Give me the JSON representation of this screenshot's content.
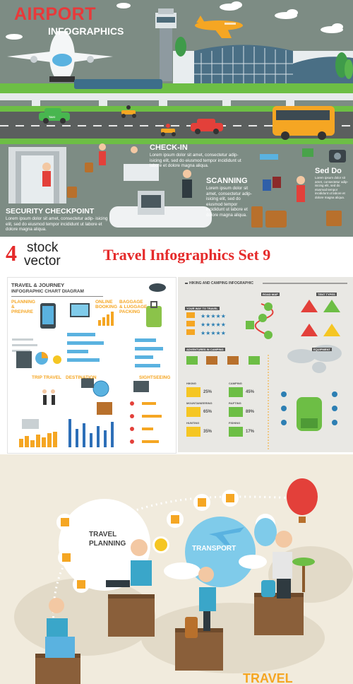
{
  "airport": {
    "title": "AIRPORT",
    "subtitle": "INFOGRAPHICS",
    "checkin_label": "CHECK-IN",
    "scanning_label": "SCANNING",
    "security_label": "SECURITY CHECKPOINT",
    "sed_do_label": "Sed Do",
    "taxi_text": "TAXI",
    "lorem_checkin": "Lorem ipsum dolor sit amet, consectetur adip- isicing elit, sed do eiusmod tempor incididunt ut labore et dolore magna aliqua.",
    "lorem_scanning": "Lorem ipsum dolor sit amet, consectetur adip- isicing elit, sed do eiusmod tempor incididunt ut labore et dolore magna aliqua.",
    "lorem_security": "Lorem ipsum dolor sit amet, consectetur adip- isicing elit, sed do eiusmod tempor incididunt ut labore et dolore magna aliqua.",
    "lorem_seddo": "Lorem ipsum dolor sit amet, consectetur adip- isicing elit, sed do eiusmod tempor incididunt ut labore et dolore magna aliqua."
  },
  "header": {
    "count": "4",
    "stock_line1": "stock",
    "stock_line2": "vector",
    "set_title": "Travel Infographics Set 9"
  },
  "journey": {
    "title_line1": "TRAVEL & JOURNEY",
    "title_line2": "INFOGRAPHIC CHART DIAGRAM",
    "planning": "PLANNING & PREPARE",
    "online": "ONLINE BOOKING",
    "baggage": "BAGGAGE & LUGGAGE PACKING",
    "trip": "TRIP TRAVEL",
    "destination": "DESTINATION",
    "sightseeing": "SIGHTSEEING"
  },
  "hiking": {
    "title": "HIKING AND CAMPING INFOGRAPHIC",
    "road_map": "ROAD MAP",
    "tent_types": "TENT TYPES",
    "ways_to_travel": "YOUR WAY TO TRAVEL",
    "adventures": "ADVENTURES IN CAMPING",
    "equipment": "EQUIPMENT",
    "hiking": "HIKING",
    "mountaineering": "MOUNTAINEERING",
    "camping": "CAMPING",
    "hunting": "HUNTING",
    "fishing": "FISHING",
    "rafting": "RAFTING",
    "stats": [
      {
        "left": "25%",
        "right": "45%"
      },
      {
        "left": "65%",
        "right": "89%"
      },
      {
        "left": "35%",
        "right": "17%"
      }
    ]
  },
  "planning": {
    "travel_planning_1": "TRAVEL",
    "travel_planning_2": "PLANNING",
    "transport": "TRANSPORT",
    "travel_partial": "TRAVEL"
  },
  "colors": {
    "airport_bg": "#7d8c84",
    "red_title": "#e52b2b",
    "green": "#6dbe45",
    "road": "#5b5f5e",
    "cream": "#f1ebdd"
  }
}
